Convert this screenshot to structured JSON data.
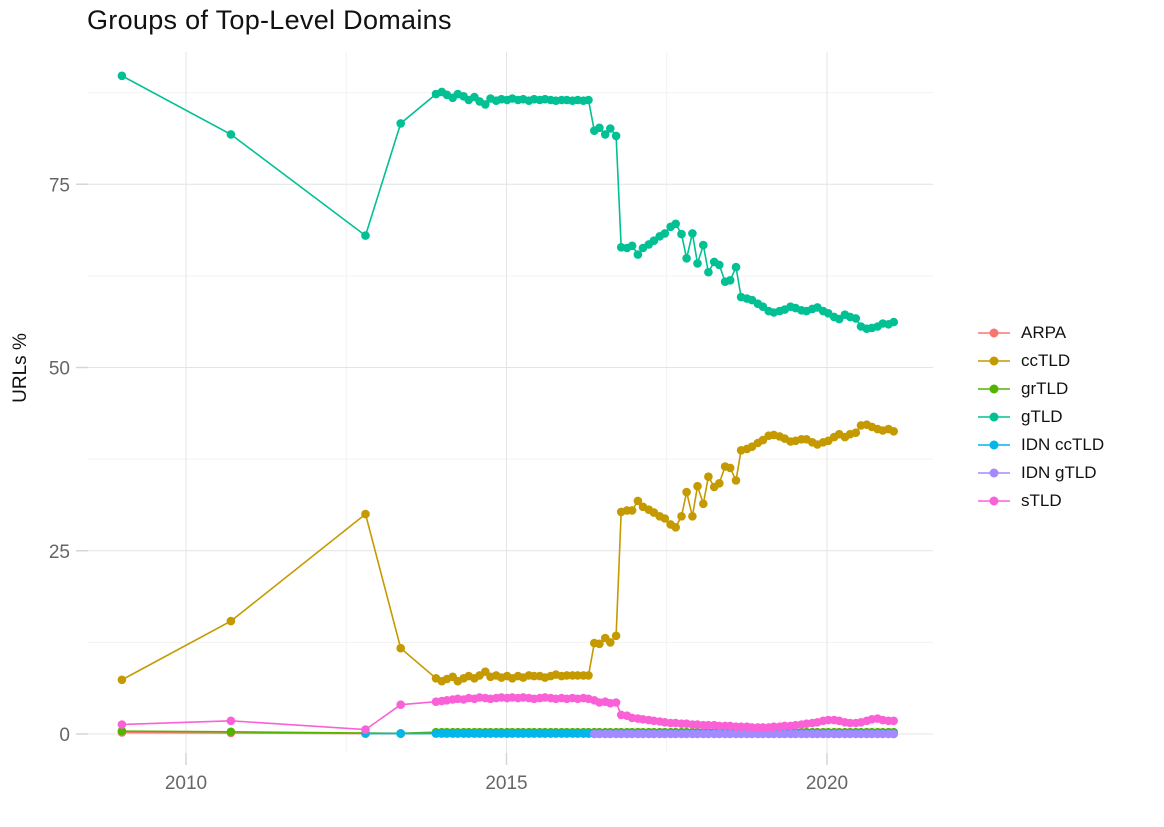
{
  "chart_data": {
    "type": "line",
    "title": "Groups of Top-Level Domains",
    "xlabel": "",
    "ylabel": "URLs %",
    "legend_position": "right",
    "grid": true,
    "point_marks": true,
    "axes": {
      "x_ticks": [
        2010,
        2015,
        2020
      ],
      "x_tick_labels": [
        "2010",
        "2015",
        "2020"
      ],
      "x_minor": [
        2012.5,
        2017.5
      ],
      "y_ticks": [
        0,
        25,
        50,
        75
      ],
      "y_tick_labels": [
        "0",
        "25",
        "50",
        "75"
      ],
      "y_minor": [
        12.5,
        37.5,
        62.5,
        87.5
      ],
      "xlim": [
        2008.5,
        2021.6
      ],
      "ylim": [
        -4,
        93
      ]
    },
    "colors": {
      "grid_major": "#e4e4e4",
      "grid_minor": "#f2f2f2",
      "axis_tick": "#d6d6d6",
      "tick_text": "#666666",
      "text": "#111111"
    },
    "dense_x": [
      2013.9,
      2013.99,
      2014.07,
      2014.16,
      2014.24,
      2014.33,
      2014.41,
      2014.5,
      2014.58,
      2014.67,
      2014.75,
      2014.84,
      2014.92,
      2015.01,
      2015.09,
      2015.18,
      2015.26,
      2015.35,
      2015.43,
      2015.52,
      2015.6,
      2015.69,
      2015.77,
      2015.86,
      2015.94,
      2016.03,
      2016.11,
      2016.2,
      2016.28,
      2016.37,
      2016.45,
      2016.54,
      2016.62,
      2016.71,
      2016.79,
      2016.88,
      2016.96,
      2017.05,
      2017.13,
      2017.22,
      2017.3,
      2017.39,
      2017.47,
      2017.56,
      2017.64,
      2017.73,
      2017.81,
      2017.9,
      2017.98,
      2018.07,
      2018.15,
      2018.24,
      2018.32,
      2018.41,
      2018.49,
      2018.58,
      2018.66,
      2018.75,
      2018.83,
      2018.92,
      2019.0,
      2019.09,
      2019.17,
      2019.26,
      2019.34,
      2019.43,
      2019.51,
      2019.6,
      2019.68,
      2019.77,
      2019.85,
      2019.94,
      2020.02,
      2020.11,
      2020.19,
      2020.28,
      2020.36,
      2020.45,
      2020.53,
      2020.62,
      2020.7,
      2020.79,
      2020.87,
      2020.96,
      2021.04
    ],
    "series": [
      {
        "id": "arpa",
        "name": "ARPA",
        "color": "#F8766D",
        "sparse": [
          [
            2009,
            0.2
          ],
          [
            2010.7,
            0.15
          ],
          [
            2012.8,
            0.06
          ],
          [
            2013.35,
            0.04
          ],
          [
            2021.04,
            0.02
          ]
        ]
      },
      {
        "id": "cctld",
        "name": "ccTLD",
        "color": "#C49A00",
        "sparse": [
          [
            2009,
            7.4
          ],
          [
            2010.7,
            15.4
          ],
          [
            2012.8,
            30.0
          ],
          [
            2013.35,
            11.7
          ]
        ],
        "dense_y": [
          7.6,
          7.2,
          7.5,
          7.8,
          7.2,
          7.6,
          7.9,
          7.6,
          8.0,
          8.5,
          7.8,
          8.0,
          7.7,
          7.9,
          7.6,
          7.9,
          7.7,
          8.0,
          7.9,
          7.9,
          7.7,
          7.9,
          8.1,
          7.9,
          8.0,
          8.0,
          8.0,
          8.0,
          8.0,
          12.4,
          12.3,
          13.1,
          12.5,
          13.4,
          30.3,
          30.5,
          30.5,
          31.8,
          31.0,
          30.6,
          30.2,
          29.7,
          29.4,
          28.6,
          28.2,
          29.7,
          33.0,
          29.7,
          33.8,
          31.4,
          35.1,
          33.7,
          34.2,
          36.5,
          36.3,
          34.6,
          38.7,
          38.9,
          39.2,
          39.7,
          40.1,
          40.7,
          40.8,
          40.6,
          40.3,
          39.9,
          40.0,
          40.2,
          40.2,
          39.8,
          39.5,
          39.8,
          40.0,
          40.5,
          40.9,
          40.5,
          40.9,
          41.1,
          42.1,
          42.2,
          41.9,
          41.6,
          41.4,
          41.6,
          41.3
        ]
      },
      {
        "id": "grtld",
        "name": "grTLD",
        "color": "#53B400",
        "sparse": [
          [
            2009,
            0.4
          ],
          [
            2010.7,
            0.3
          ],
          [
            2012.8,
            0.12
          ],
          [
            2013.35,
            0.1
          ]
        ],
        "dense_const": 0.25
      },
      {
        "id": "gtld",
        "name": "gTLD",
        "color": "#00C094",
        "sparse": [
          [
            2009,
            89.8
          ],
          [
            2010.7,
            81.8
          ],
          [
            2012.8,
            68.0
          ],
          [
            2013.35,
            83.3
          ]
        ],
        "dense_y": [
          87.3,
          87.6,
          87.2,
          86.8,
          87.3,
          87.0,
          86.5,
          86.9,
          86.3,
          85.9,
          86.7,
          86.4,
          86.6,
          86.5,
          86.7,
          86.5,
          86.6,
          86.4,
          86.6,
          86.5,
          86.6,
          86.5,
          86.4,
          86.5,
          86.5,
          86.4,
          86.5,
          86.4,
          86.5,
          82.3,
          82.7,
          81.8,
          82.6,
          81.6,
          66.4,
          66.3,
          66.6,
          65.4,
          66.3,
          66.8,
          67.3,
          67.9,
          68.3,
          69.2,
          69.6,
          68.2,
          64.9,
          68.3,
          64.2,
          66.7,
          63.0,
          64.4,
          64.0,
          61.7,
          61.9,
          63.7,
          59.6,
          59.4,
          59.2,
          58.7,
          58.3,
          57.7,
          57.5,
          57.7,
          57.9,
          58.3,
          58.1,
          57.8,
          57.7,
          58.0,
          58.2,
          57.7,
          57.4,
          56.9,
          56.6,
          57.2,
          56.9,
          56.7,
          55.6,
          55.3,
          55.4,
          55.6,
          56.0,
          55.9,
          56.2
        ]
      },
      {
        "id": "idn-cctld",
        "name": "IDN ccTLD",
        "color": "#00B6EB",
        "sparse": [
          [
            2012.8,
            0.06
          ],
          [
            2013.35,
            0.05
          ]
        ],
        "dense_const": 0.05
      },
      {
        "id": "idn-gtld",
        "name": "IDN gTLD",
        "color": "#A58AFF",
        "dense_const": 0.0,
        "dense_from": 29
      },
      {
        "id": "stld",
        "name": "sTLD",
        "color": "#FB61D7",
        "sparse": [
          [
            2009,
            1.3
          ],
          [
            2010.7,
            1.8
          ],
          [
            2012.8,
            0.6
          ],
          [
            2013.35,
            4.0
          ]
        ],
        "dense_y": [
          4.4,
          4.5,
          4.6,
          4.7,
          4.8,
          4.7,
          4.9,
          4.8,
          5.0,
          4.9,
          4.8,
          4.9,
          5.0,
          4.9,
          5.0,
          4.9,
          5.0,
          4.9,
          4.8,
          4.9,
          5.0,
          4.9,
          4.8,
          4.9,
          4.8,
          4.9,
          4.8,
          4.9,
          4.8,
          4.6,
          4.3,
          4.4,
          4.2,
          4.3,
          2.6,
          2.5,
          2.2,
          2.1,
          2.0,
          1.9,
          1.8,
          1.7,
          1.6,
          1.5,
          1.5,
          1.4,
          1.4,
          1.3,
          1.3,
          1.2,
          1.2,
          1.2,
          1.1,
          1.1,
          1.1,
          1.0,
          1.0,
          1.0,
          0.9,
          0.9,
          0.9,
          0.9,
          1.0,
          1.0,
          1.1,
          1.1,
          1.2,
          1.3,
          1.4,
          1.5,
          1.6,
          1.8,
          1.9,
          1.9,
          1.8,
          1.6,
          1.5,
          1.5,
          1.6,
          1.8,
          2.0,
          2.1,
          1.9,
          1.8,
          1.8
        ]
      }
    ]
  }
}
